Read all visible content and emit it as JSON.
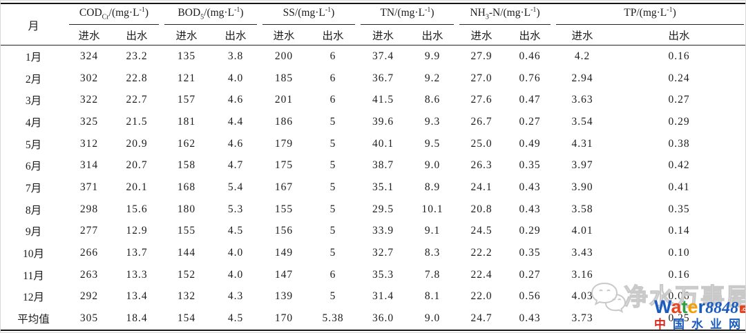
{
  "table": {
    "month_header": "月",
    "sub_headers": {
      "in": "进水",
      "out": "出水"
    },
    "groups": [
      {
        "main": "COD",
        "sub": "Cr",
        "mid": "",
        "unit": "/(mg·L",
        "sup": "-1",
        "close": ")"
      },
      {
        "main": "BOD",
        "sub": "5",
        "mid": "",
        "unit": "/(mg·L",
        "sup": "-1",
        "close": ")"
      },
      {
        "main": "SS",
        "sub": "",
        "mid": "",
        "unit": "/(mg·L",
        "sup": "-1",
        "close": ")"
      },
      {
        "main": "TN",
        "sub": "",
        "mid": "",
        "unit": "/(mg·L",
        "sup": "-1",
        "close": ")"
      },
      {
        "main": "NH",
        "sub": "3",
        "mid": "-N",
        "unit": "/(mg·L",
        "sup": "-1",
        "close": ")"
      },
      {
        "main": "TP",
        "sub": "",
        "mid": "",
        "unit": "/(mg·L",
        "sup": "-1",
        "close": ")"
      }
    ],
    "rows": [
      {
        "month": "1月",
        "values": [
          "324",
          "23.2",
          "135",
          "3.8",
          "200",
          "6",
          "37.4",
          "9.9",
          "27.9",
          "0.46",
          "4.2",
          "0.16"
        ]
      },
      {
        "month": "2月",
        "values": [
          "302",
          "22.8",
          "121",
          "4.0",
          "185",
          "6",
          "36.7",
          "9.2",
          "27.0",
          "0.76",
          "2.94",
          "0.24"
        ]
      },
      {
        "month": "3月",
        "values": [
          "322",
          "22.7",
          "157",
          "4.6",
          "201",
          "6",
          "41.5",
          "8.6",
          "27.6",
          "0.47",
          "3.63",
          "0.27"
        ]
      },
      {
        "month": "4月",
        "values": [
          "325",
          "21.5",
          "181",
          "4.4",
          "186",
          "5",
          "39.6",
          "9.3",
          "26.7",
          "0.27",
          "3.54",
          "0.29"
        ]
      },
      {
        "month": "5月",
        "values": [
          "312",
          "20.9",
          "162",
          "4.6",
          "179",
          "5",
          "40.1",
          "9.5",
          "25.0",
          "0.49",
          "4.31",
          "0.38"
        ]
      },
      {
        "month": "6月",
        "values": [
          "314",
          "20.7",
          "158",
          "4.7",
          "175",
          "5",
          "38.7",
          "9.0",
          "26.3",
          "0.35",
          "3.97",
          "0.42"
        ]
      },
      {
        "month": "7月",
        "values": [
          "371",
          "20.1",
          "168",
          "5.4",
          "167",
          "5",
          "35.1",
          "8.9",
          "24.1",
          "0.43",
          "3.90",
          "0.41"
        ]
      },
      {
        "month": "8月",
        "values": [
          "298",
          "15.6",
          "180",
          "5.3",
          "155",
          "5",
          "29.5",
          "10.1",
          "20.8",
          "0.43",
          "3.58",
          "0.35"
        ]
      },
      {
        "month": "9月",
        "values": [
          "277",
          "12.9",
          "155",
          "4.5",
          "156",
          "5",
          "33.9",
          "9.1",
          "24.5",
          "0.29",
          "4.01",
          "0.14"
        ]
      },
      {
        "month": "10月",
        "values": [
          "266",
          "13.7",
          "144",
          "4.0",
          "149",
          "5",
          "32.7",
          "8.3",
          "22.2",
          "0.35",
          "3.43",
          "0.10"
        ]
      },
      {
        "month": "11月",
        "values": [
          "263",
          "13.3",
          "152",
          "4.0",
          "147",
          "6",
          "35.3",
          "7.8",
          "22.4",
          "0.27",
          "3.16",
          "0.16"
        ]
      },
      {
        "month": "12月",
        "values": [
          "292",
          "13.4",
          "132",
          "4.3",
          "139",
          "5",
          "31.4",
          "8.1",
          "22.0",
          "0.56",
          "4.03",
          "0.06"
        ]
      },
      {
        "month": "平均值",
        "values": [
          "305",
          "18.4",
          "154",
          "4.5",
          "170",
          "5.38",
          "36.0",
          "9.0",
          "24.7",
          "0.43",
          "3.73",
          "0.25"
        ]
      }
    ]
  },
  "watermark": {
    "outline_text": "净水万事屋",
    "brand_letters": [
      {
        "ch": "W",
        "color": "#1a5bbf"
      },
      {
        "ch": "a",
        "color": "#e8431f"
      },
      {
        "ch": "t",
        "color": "#2f9e44"
      },
      {
        "ch": "e",
        "color": "#f59f00"
      },
      {
        "ch": "r",
        "color": "#1a5bbf"
      }
    ],
    "brand_number": "8848",
    "brand_number_color": "#1a5bbf",
    "brand_tld": ".com",
    "site_letters": [
      {
        "ch": "中",
        "color": "#d6281e"
      },
      {
        "ch": "国",
        "color": "#1a5bbf"
      },
      {
        "ch": "水",
        "color": "#1a5bbf"
      },
      {
        "ch": "业",
        "color": "#1a5bbf"
      },
      {
        "ch": "网",
        "color": "#1a5bbf"
      }
    ],
    "outline_color": "#c9c9c9"
  }
}
